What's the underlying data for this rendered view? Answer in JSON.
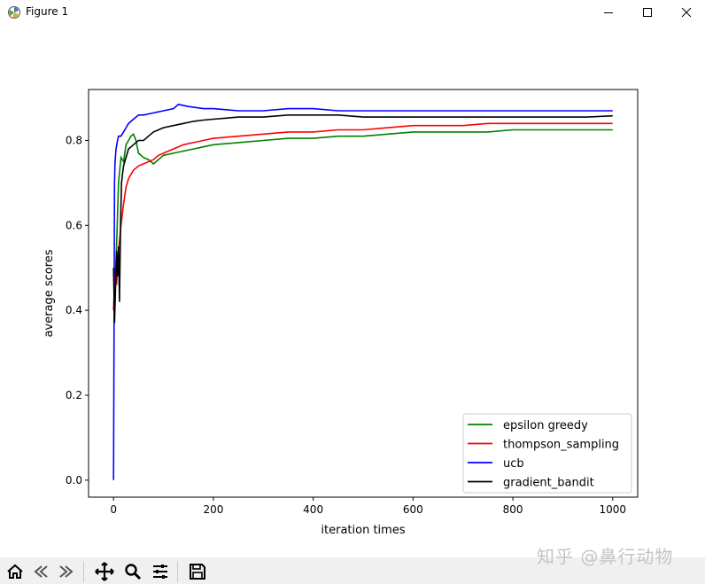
{
  "window": {
    "title": "Figure 1"
  },
  "toolbar": {
    "buttons": [
      {
        "icon": "home-icon"
      },
      {
        "icon": "back-icon"
      },
      {
        "icon": "forward-icon"
      },
      {
        "icon": "pan-icon"
      },
      {
        "icon": "zoom-icon"
      },
      {
        "icon": "configure-subplots-icon"
      },
      {
        "icon": "save-icon"
      }
    ]
  },
  "watermark": "知乎 @鼻行动物",
  "chart_data": {
    "type": "line",
    "xlabel": "iteration times",
    "ylabel": "average scores",
    "xlim": [
      -50,
      1050
    ],
    "ylim": [
      -0.04,
      0.92
    ],
    "xticks": [
      0,
      200,
      400,
      600,
      800,
      1000
    ],
    "yticks": [
      0.0,
      0.2,
      0.4,
      0.6,
      0.8
    ],
    "xtick_labels": [
      "0",
      "200",
      "400",
      "600",
      "800",
      "1000"
    ],
    "ytick_labels": [
      "0.0",
      "0.2",
      "0.4",
      "0.6",
      "0.8"
    ],
    "grid": false,
    "legend": "lower-right",
    "series": [
      {
        "name": "epsilon greedy",
        "color": "#008000",
        "x": [
          0,
          3,
          6,
          10,
          15,
          20,
          25,
          30,
          35,
          40,
          45,
          50,
          60,
          70,
          80,
          90,
          100,
          120,
          140,
          160,
          180,
          200,
          250,
          300,
          350,
          400,
          450,
          500,
          550,
          600,
          650,
          700,
          750,
          800,
          850,
          900,
          950,
          1000
        ],
        "values": [
          0.5,
          0.45,
          0.55,
          0.7,
          0.76,
          0.75,
          0.79,
          0.8,
          0.81,
          0.815,
          0.8,
          0.77,
          0.76,
          0.755,
          0.745,
          0.755,
          0.765,
          0.77,
          0.775,
          0.78,
          0.785,
          0.79,
          0.795,
          0.8,
          0.805,
          0.805,
          0.81,
          0.81,
          0.815,
          0.82,
          0.82,
          0.82,
          0.82,
          0.825,
          0.825,
          0.825,
          0.825,
          0.825
        ]
      },
      {
        "name": "thompson_sampling",
        "color": "#ff0000",
        "x": [
          0,
          3,
          6,
          10,
          15,
          20,
          25,
          30,
          35,
          40,
          50,
          60,
          70,
          80,
          90,
          100,
          120,
          140,
          160,
          180,
          200,
          250,
          300,
          350,
          400,
          450,
          500,
          550,
          600,
          650,
          700,
          750,
          800,
          850,
          900,
          950,
          1000
        ],
        "values": [
          0.4,
          0.5,
          0.46,
          0.54,
          0.6,
          0.65,
          0.69,
          0.71,
          0.72,
          0.73,
          0.74,
          0.745,
          0.75,
          0.755,
          0.765,
          0.77,
          0.78,
          0.79,
          0.795,
          0.8,
          0.805,
          0.81,
          0.815,
          0.82,
          0.82,
          0.825,
          0.825,
          0.83,
          0.835,
          0.835,
          0.835,
          0.84,
          0.84,
          0.84,
          0.84,
          0.84,
          0.84
        ]
      },
      {
        "name": "ucb",
        "color": "#0000ff",
        "x": [
          0,
          1,
          2,
          3,
          5,
          8,
          10,
          15,
          20,
          25,
          30,
          40,
          50,
          60,
          80,
          100,
          120,
          130,
          150,
          180,
          200,
          250,
          300,
          350,
          400,
          450,
          500,
          550,
          600,
          650,
          700,
          750,
          800,
          850,
          900,
          950,
          1000
        ],
        "values": [
          0.0,
          0.3,
          0.7,
          0.75,
          0.78,
          0.8,
          0.81,
          0.81,
          0.82,
          0.83,
          0.84,
          0.85,
          0.86,
          0.86,
          0.865,
          0.87,
          0.875,
          0.885,
          0.88,
          0.875,
          0.875,
          0.87,
          0.87,
          0.875,
          0.875,
          0.87,
          0.87,
          0.87,
          0.87,
          0.87,
          0.87,
          0.87,
          0.87,
          0.87,
          0.87,
          0.87,
          0.87
        ]
      },
      {
        "name": "gradient_bandit",
        "color": "#000000",
        "x": [
          0,
          2,
          4,
          6,
          8,
          10,
          12,
          14,
          16,
          18,
          20,
          25,
          30,
          40,
          50,
          60,
          70,
          80,
          90,
          100,
          120,
          140,
          160,
          180,
          200,
          250,
          300,
          350,
          400,
          450,
          500,
          550,
          600,
          650,
          700,
          750,
          800,
          850,
          900,
          950,
          1000
        ],
        "values": [
          0.5,
          0.37,
          0.45,
          0.54,
          0.48,
          0.55,
          0.42,
          0.6,
          0.7,
          0.72,
          0.74,
          0.76,
          0.78,
          0.79,
          0.8,
          0.8,
          0.81,
          0.82,
          0.825,
          0.83,
          0.835,
          0.84,
          0.845,
          0.848,
          0.85,
          0.855,
          0.855,
          0.86,
          0.86,
          0.86,
          0.855,
          0.855,
          0.855,
          0.855,
          0.855,
          0.855,
          0.855,
          0.855,
          0.855,
          0.855,
          0.858
        ]
      }
    ]
  }
}
